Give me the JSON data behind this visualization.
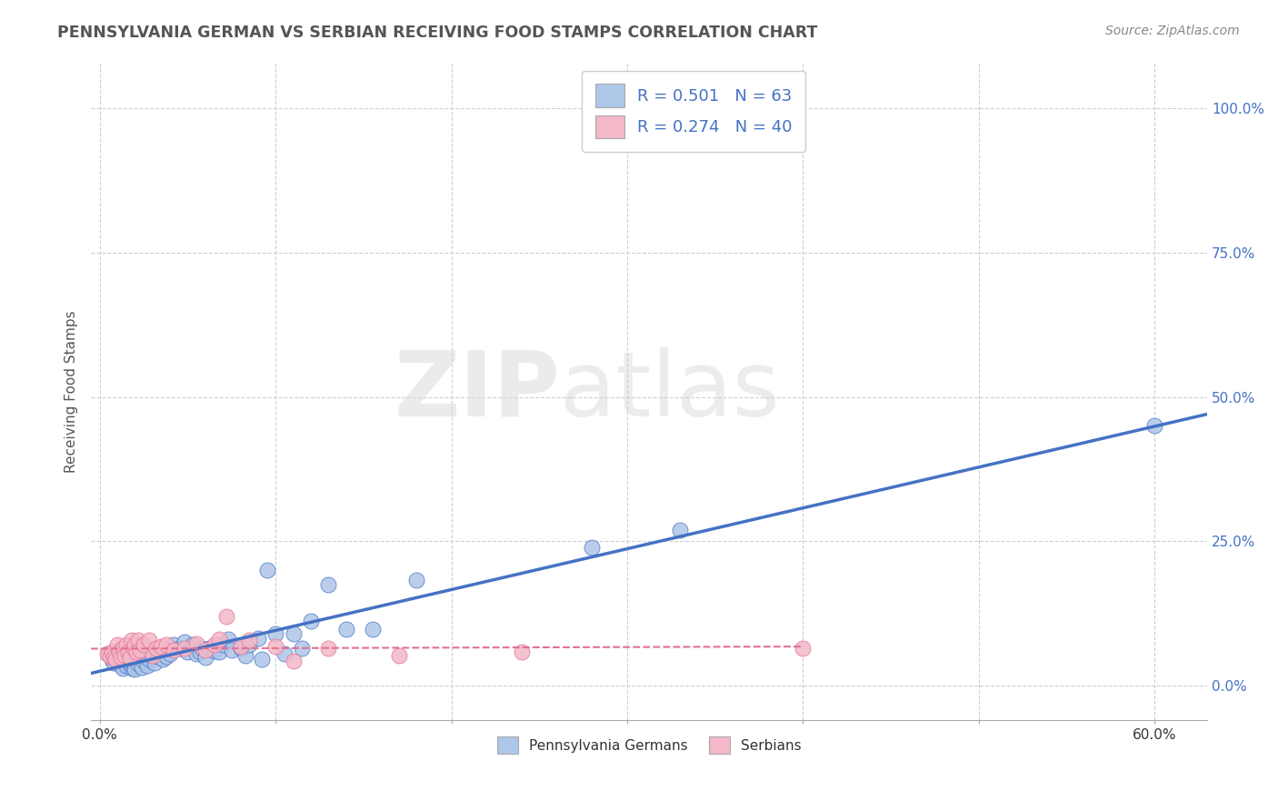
{
  "title": "PENNSYLVANIA GERMAN VS SERBIAN RECEIVING FOOD STAMPS CORRELATION CHART",
  "source": "Source: ZipAtlas.com",
  "ylabel": "Receiving Food Stamps",
  "ylabel_ticks_vals": [
    0.0,
    0.25,
    0.5,
    0.75,
    1.0
  ],
  "ylabel_ticks_labels": [
    "0.0%",
    "25.0%",
    "50.0%",
    "75.0%",
    "100.0%"
  ],
  "xticks_vals": [
    0.0,
    0.1,
    0.2,
    0.3,
    0.4,
    0.5,
    0.6
  ],
  "xticks_labels": [
    "0.0%",
    "",
    "",
    "",
    "",
    "",
    "60.0%"
  ],
  "xlim": [
    -0.005,
    0.63
  ],
  "ylim": [
    -0.06,
    1.08
  ],
  "legend_R1": "R = 0.501",
  "legend_N1": "N = 63",
  "legend_R2": "R = 0.274",
  "legend_N2": "N = 40",
  "legend_label1": "Pennsylvania Germans",
  "legend_label2": "Serbians",
  "color_blue": "#aec6e8",
  "color_pink": "#f4b8c8",
  "line_color_blue": "#4472c4",
  "line_color_pink": "#e07090",
  "watermark_zip": "ZIP",
  "watermark_atlas": "atlas",
  "background_color": "#ffffff",
  "grid_color": "#d0d0d0",
  "blue_scatter": [
    [
      0.005,
      0.055
    ],
    [
      0.007,
      0.045
    ],
    [
      0.008,
      0.04
    ],
    [
      0.01,
      0.05
    ],
    [
      0.01,
      0.06
    ],
    [
      0.012,
      0.035
    ],
    [
      0.013,
      0.03
    ],
    [
      0.014,
      0.042
    ],
    [
      0.015,
      0.035
    ],
    [
      0.016,
      0.045
    ],
    [
      0.017,
      0.038
    ],
    [
      0.018,
      0.03
    ],
    [
      0.019,
      0.032
    ],
    [
      0.02,
      0.04
    ],
    [
      0.02,
      0.028
    ],
    [
      0.021,
      0.045
    ],
    [
      0.022,
      0.038
    ],
    [
      0.023,
      0.048
    ],
    [
      0.024,
      0.032
    ],
    [
      0.025,
      0.042
    ],
    [
      0.026,
      0.048
    ],
    [
      0.027,
      0.035
    ],
    [
      0.028,
      0.045
    ],
    [
      0.03,
      0.05
    ],
    [
      0.031,
      0.04
    ],
    [
      0.033,
      0.05
    ],
    [
      0.035,
      0.048
    ],
    [
      0.036,
      0.045
    ],
    [
      0.038,
      0.05
    ],
    [
      0.04,
      0.055
    ],
    [
      0.042,
      0.07
    ],
    [
      0.045,
      0.065
    ],
    [
      0.048,
      0.075
    ],
    [
      0.05,
      0.058
    ],
    [
      0.053,
      0.07
    ],
    [
      0.055,
      0.055
    ],
    [
      0.057,
      0.058
    ],
    [
      0.058,
      0.065
    ],
    [
      0.06,
      0.048
    ],
    [
      0.062,
      0.065
    ],
    [
      0.065,
      0.06
    ],
    [
      0.068,
      0.058
    ],
    [
      0.07,
      0.07
    ],
    [
      0.073,
      0.08
    ],
    [
      0.075,
      0.062
    ],
    [
      0.08,
      0.065
    ],
    [
      0.083,
      0.052
    ],
    [
      0.085,
      0.07
    ],
    [
      0.09,
      0.082
    ],
    [
      0.092,
      0.045
    ],
    [
      0.095,
      0.2
    ],
    [
      0.1,
      0.09
    ],
    [
      0.105,
      0.055
    ],
    [
      0.11,
      0.09
    ],
    [
      0.115,
      0.065
    ],
    [
      0.12,
      0.112
    ],
    [
      0.13,
      0.175
    ],
    [
      0.14,
      0.098
    ],
    [
      0.155,
      0.098
    ],
    [
      0.18,
      0.182
    ],
    [
      0.28,
      0.24
    ],
    [
      0.33,
      0.27
    ],
    [
      0.6,
      0.45
    ]
  ],
  "pink_scatter": [
    [
      0.004,
      0.055
    ],
    [
      0.006,
      0.05
    ],
    [
      0.007,
      0.058
    ],
    [
      0.008,
      0.048
    ],
    [
      0.009,
      0.045
    ],
    [
      0.01,
      0.07
    ],
    [
      0.011,
      0.058
    ],
    [
      0.012,
      0.048
    ],
    [
      0.013,
      0.065
    ],
    [
      0.014,
      0.052
    ],
    [
      0.015,
      0.07
    ],
    [
      0.016,
      0.058
    ],
    [
      0.017,
      0.048
    ],
    [
      0.018,
      0.078
    ],
    [
      0.019,
      0.065
    ],
    [
      0.02,
      0.07
    ],
    [
      0.021,
      0.058
    ],
    [
      0.022,
      0.078
    ],
    [
      0.023,
      0.062
    ],
    [
      0.025,
      0.07
    ],
    [
      0.028,
      0.078
    ],
    [
      0.03,
      0.052
    ],
    [
      0.032,
      0.065
    ],
    [
      0.035,
      0.068
    ],
    [
      0.038,
      0.07
    ],
    [
      0.042,
      0.062
    ],
    [
      0.048,
      0.065
    ],
    [
      0.055,
      0.073
    ],
    [
      0.06,
      0.062
    ],
    [
      0.065,
      0.07
    ],
    [
      0.068,
      0.08
    ],
    [
      0.072,
      0.12
    ],
    [
      0.08,
      0.068
    ],
    [
      0.085,
      0.078
    ],
    [
      0.1,
      0.068
    ],
    [
      0.11,
      0.042
    ],
    [
      0.13,
      0.065
    ],
    [
      0.17,
      0.052
    ],
    [
      0.24,
      0.058
    ],
    [
      0.4,
      0.065
    ]
  ]
}
